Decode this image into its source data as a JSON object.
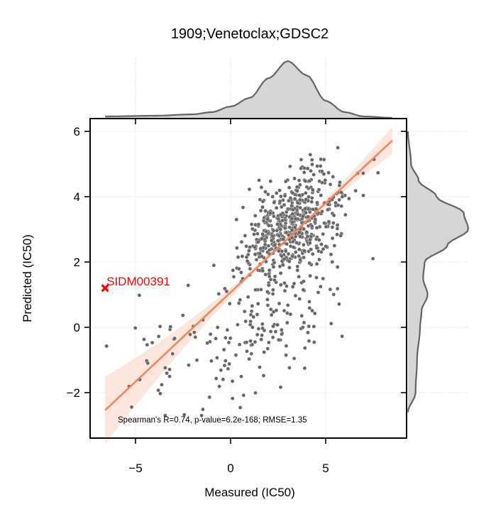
{
  "chart_data": {
    "type": "scatter",
    "title": "1909;Venetoclax;GDSC2",
    "xlabel": "Measured (IC50)",
    "ylabel": "Predicted (IC50)",
    "xlim": [
      -7.2,
      9.5
    ],
    "ylim": [
      -3.4,
      6.4
    ],
    "xticks": [
      -5,
      0,
      5
    ],
    "yticks": [
      -2,
      0,
      2,
      4,
      6
    ],
    "xtick_labels": [
      "−5",
      "0",
      "5"
    ],
    "ytick_labels": [
      "−2",
      "0",
      "2",
      "4",
      "6"
    ],
    "annotation": "Spearman's R=0.74, p-value=6.2e-168; RMSE=1.35",
    "n_points": 760,
    "regression": {
      "slope": 0.547,
      "intercept": 1.07,
      "x_range": [
        -6.6,
        8.5
      ]
    },
    "highlight": {
      "label": "SIDM00391",
      "x": -6.6,
      "y": 1.2,
      "color": "#ff0000"
    },
    "marginal_x_kde": {
      "x": [
        -6.6,
        -4,
        -2,
        -1,
        0,
        1,
        2,
        3,
        4,
        5,
        6,
        7,
        8.5
      ],
      "density": [
        0.01,
        0.015,
        0.025,
        0.04,
        0.08,
        0.14,
        0.28,
        0.4,
        0.3,
        0.12,
        0.04,
        0.01,
        0.0
      ]
    },
    "marginal_y_kde": {
      "y": [
        -2.6,
        -2,
        -1,
        0,
        0.5,
        1,
        1.5,
        2,
        2.5,
        3,
        3.5,
        4,
        4.5,
        5,
        6
      ],
      "density": [
        0.0,
        0.05,
        0.06,
        0.08,
        0.09,
        0.13,
        0.1,
        0.11,
        0.26,
        0.4,
        0.37,
        0.19,
        0.07,
        0.02,
        0.0
      ]
    },
    "colors": {
      "points": "#666666",
      "regression": "#f4865d",
      "ci_band": "#fde2d7",
      "kde_fill": "#d6d6d6",
      "kde_line": "#636363"
    }
  }
}
